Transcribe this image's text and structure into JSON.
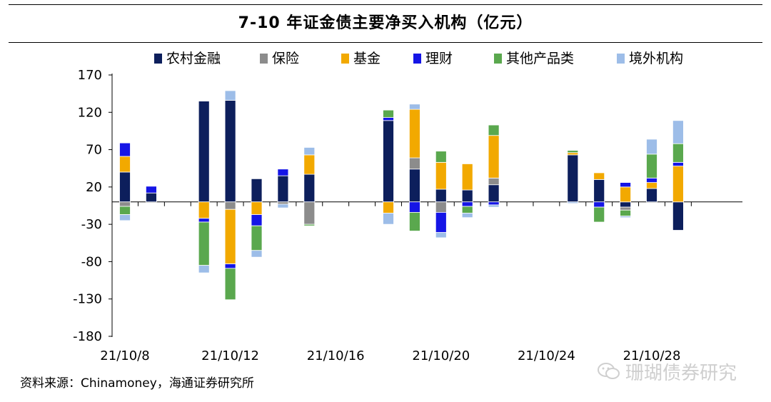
{
  "title": "7-10 年证金债主要净买入机构（亿元）",
  "source": "资料来源：Chinamoney，海通证券研究所",
  "watermark": "珊瑚债券研究",
  "chart_data": {
    "type": "bar",
    "stacked": true,
    "title": "7-10 年证金债主要净买入机构（亿元）",
    "xlabel": "",
    "ylabel": "",
    "ylim": [
      -180,
      170
    ],
    "yticks": [
      170,
      120,
      70,
      20,
      -30,
      -80,
      -130,
      -180
    ],
    "xtick_labels": [
      "21/10/8",
      "21/10/12",
      "21/10/16",
      "21/10/20",
      "21/10/24",
      "21/10/28"
    ],
    "grid": false,
    "legend_position": "top",
    "categories": [
      "21/10/8",
      "21/10/9",
      "21/10/10",
      "21/10/11",
      "21/10/12",
      "21/10/13",
      "21/10/14",
      "21/10/15",
      "21/10/16",
      "21/10/17",
      "21/10/18",
      "21/10/19",
      "21/10/20",
      "21/10/21",
      "21/10/22",
      "21/10/23",
      "21/10/24",
      "21/10/25",
      "21/10/26",
      "21/10/27",
      "21/10/28",
      "21/10/29"
    ],
    "series": [
      {
        "name": "农村金融",
        "color": "#0d1f5c",
        "values": [
          40,
          12,
          null,
          135,
          136,
          31,
          35,
          37,
          null,
          null,
          109,
          44,
          17,
          16,
          23,
          null,
          null,
          63,
          30,
          -7,
          18,
          -38
        ]
      },
      {
        "name": "保险",
        "color": "#8c8c8c",
        "values": [
          -6,
          null,
          null,
          null,
          -10,
          null,
          -3,
          -30,
          null,
          null,
          null,
          15,
          -14,
          null,
          9,
          null,
          null,
          null,
          null,
          -4,
          null,
          null
        ]
      },
      {
        "name": "基金",
        "color": "#f2a900",
        "values": [
          21,
          null,
          null,
          -22,
          -73,
          -17,
          null,
          26,
          null,
          null,
          -15,
          65,
          36,
          35,
          57,
          null,
          null,
          3,
          9,
          20,
          8,
          48
        ]
      },
      {
        "name": "理财",
        "color": "#1515e6",
        "values": [
          18,
          9,
          null,
          -5,
          -6,
          -15,
          9,
          null,
          null,
          null,
          4,
          -14,
          -27,
          -6,
          -4,
          null,
          null,
          null,
          -7,
          6,
          6,
          5
        ]
      },
      {
        "name": "其他产品类",
        "color": "#5aa84e",
        "values": [
          -11,
          null,
          null,
          -58,
          -42,
          -33,
          null,
          -2,
          null,
          null,
          10,
          -25,
          15,
          -9,
          14,
          null,
          null,
          3,
          -20,
          -8,
          32,
          25
        ]
      },
      {
        "name": "境外机构",
        "color": "#9dbde8",
        "values": [
          -8,
          null,
          null,
          -10,
          13,
          -9,
          -5,
          10,
          null,
          null,
          -15,
          7,
          -7,
          -6,
          -3,
          null,
          null,
          -2,
          null,
          -2,
          20,
          31
        ]
      }
    ]
  }
}
